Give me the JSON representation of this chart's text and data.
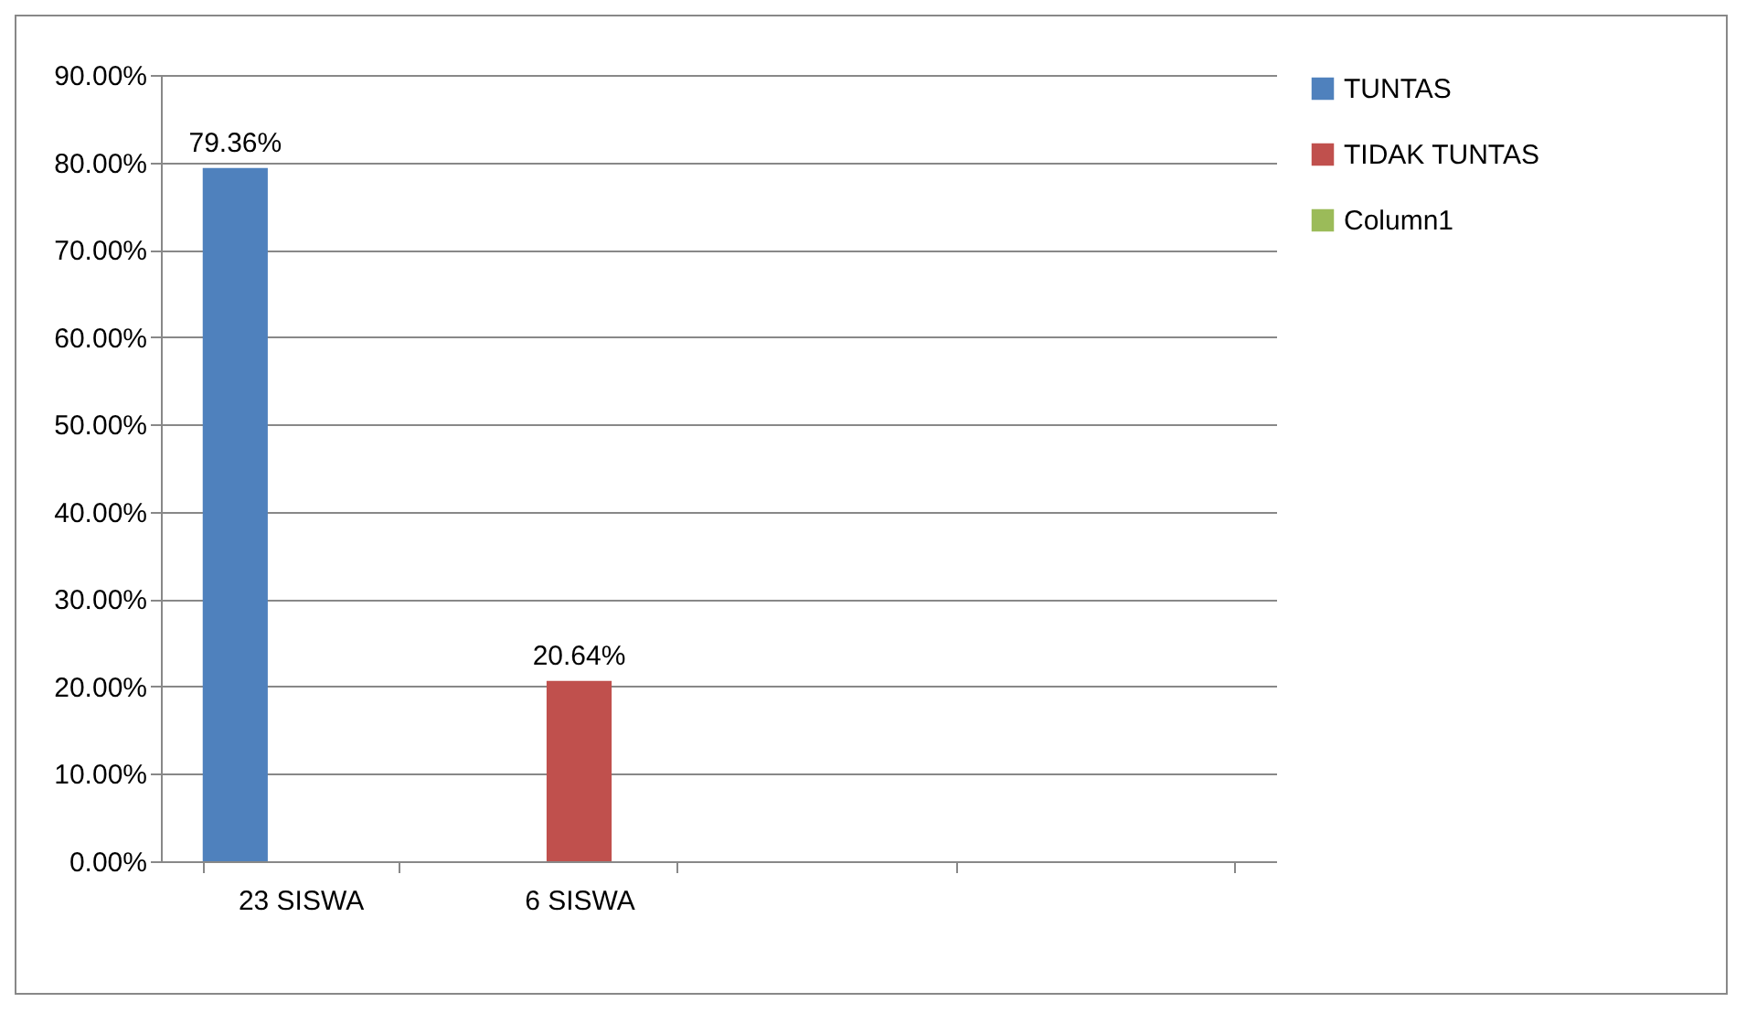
{
  "chart_data": {
    "type": "bar",
    "categories": [
      "23 SISWA",
      "6 SISWA",
      null,
      null
    ],
    "series": [
      {
        "name": "TUNTAS",
        "color": "#4f81bd",
        "values": [
          79.36,
          null,
          null,
          null
        ],
        "value_labels": [
          "79.36%",
          null,
          null,
          null
        ]
      },
      {
        "name": "TIDAK TUNTAS",
        "color": "#c0504d",
        "values": [
          null,
          20.64,
          null,
          null
        ],
        "value_labels": [
          null,
          "20.64%",
          null,
          null
        ]
      },
      {
        "name": "Column1",
        "color": "#9bbb59",
        "values": [
          null,
          null,
          null,
          null
        ]
      }
    ],
    "ylim": [
      0,
      90
    ],
    "yticks": [
      {
        "value": 0,
        "label": "0.00%"
      },
      {
        "value": 10,
        "label": "10.00%"
      },
      {
        "value": 20,
        "label": "20.00%"
      },
      {
        "value": 30,
        "label": "30.00%"
      },
      {
        "value": 40,
        "label": "40.00%"
      },
      {
        "value": 50,
        "label": "50.00%"
      },
      {
        "value": 60,
        "label": "60.00%"
      },
      {
        "value": 70,
        "label": "70.00%"
      },
      {
        "value": 80,
        "label": "80.00%"
      },
      {
        "value": 90,
        "label": "90.00%"
      }
    ],
    "grid": "y",
    "legend": "right"
  }
}
